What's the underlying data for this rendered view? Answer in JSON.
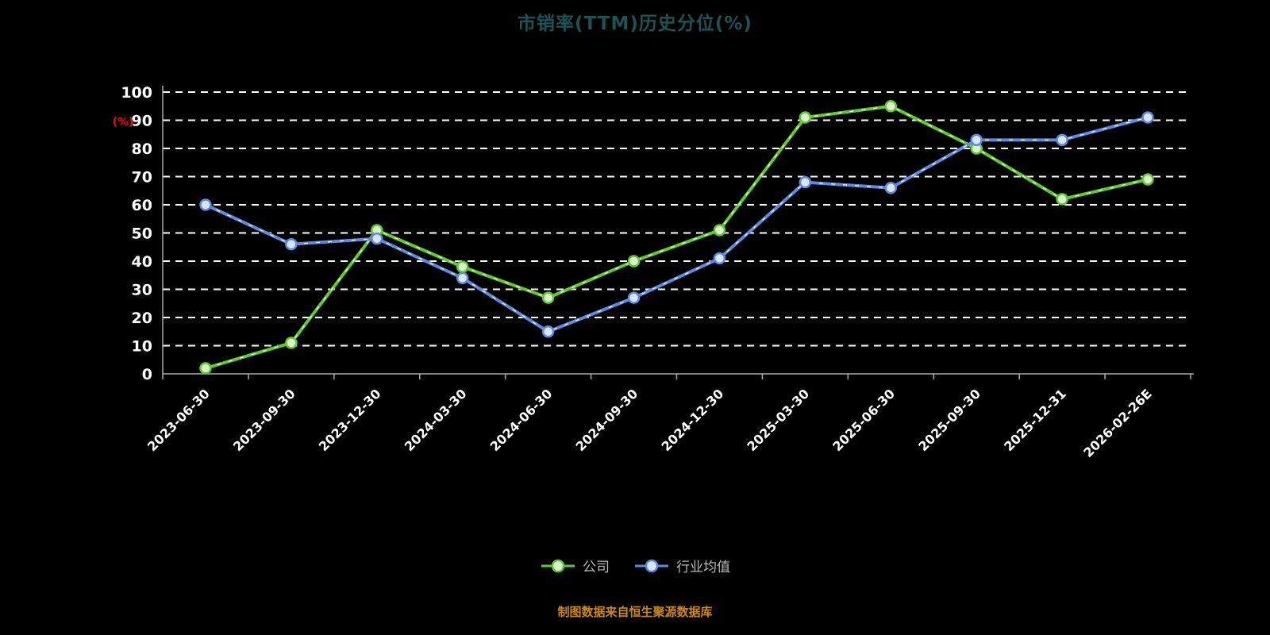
{
  "title": "市销率(TTM)历史分位(%)",
  "footer": "制图数据来自恒生聚源数据库",
  "legend": [
    {
      "label": "公司",
      "color": "#5ecb2d",
      "marker_fill": "#ddf3cc"
    },
    {
      "label": "行业均值",
      "color": "#5c8ae0",
      "marker_fill": "#d8e6f8"
    }
  ],
  "colors": {
    "background": "#000000",
    "title": "#1c5354",
    "gridline": "#ffffff",
    "axis_line": "#aaaaaa",
    "axis_text": "#ffffff",
    "y_unit": "#ff0000",
    "legend_text": "#b9b9b9",
    "footer": "#cc8a0e"
  },
  "chart_data": {
    "type": "line",
    "title": "市销率(TTM)历史分位(%)",
    "ylabel": "(%)",
    "xlabel": "",
    "ylim": [
      0,
      100
    ],
    "y_ticks": [
      0,
      10,
      20,
      30,
      40,
      50,
      60,
      70,
      80,
      90,
      100
    ],
    "grid": "dashed-horizontal",
    "legend_position": "bottom",
    "categories": [
      "2023-06-30",
      "2023-09-30",
      "2023-12-30",
      "2024-03-30",
      "2024-06-30",
      "2024-09-30",
      "2024-12-30",
      "2025-03-30",
      "2025-06-30",
      "2025-09-30",
      "2025-12-31",
      "2026-02-26E"
    ],
    "series": [
      {
        "name": "公司",
        "color": "#5ecb2d",
        "marker_fill": "#ddf3cc",
        "values": [
          2,
          11,
          51,
          38,
          27,
          40,
          51,
          91,
          95,
          80,
          62,
          69
        ]
      },
      {
        "name": "行业均值",
        "color": "#5c8ae0",
        "marker_fill": "#d8e6f8",
        "values": [
          60,
          46,
          48,
          34,
          15,
          27,
          41,
          68,
          66,
          83,
          83,
          91
        ]
      }
    ]
  }
}
